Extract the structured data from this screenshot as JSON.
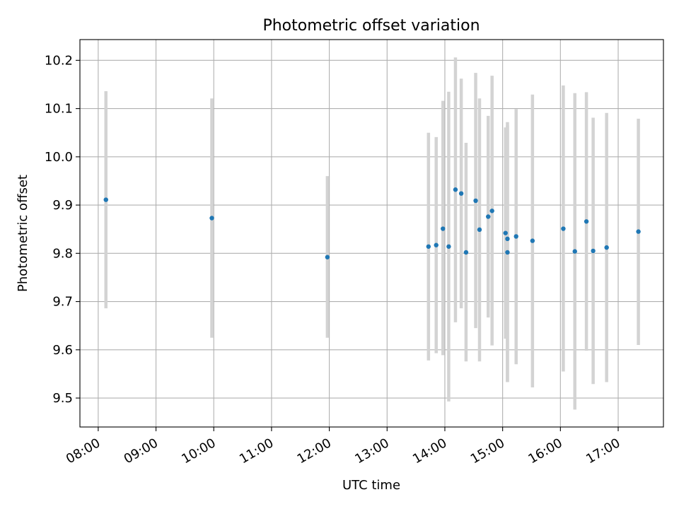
{
  "chart_data": {
    "type": "scatter",
    "title": "Photometric offset variation",
    "xlabel": "UTC time",
    "ylabel": "Photometric offset",
    "x_ticks": [
      "08:00",
      "09:00",
      "10:00",
      "11:00",
      "12:00",
      "13:00",
      "14:00",
      "15:00",
      "16:00",
      "17:00"
    ],
    "y_ticks": [
      "9.5",
      "9.6",
      "9.7",
      "9.8",
      "9.9",
      "10.0",
      "10.1",
      "10.2"
    ],
    "xlim": [
      "07:41",
      "17:47"
    ],
    "ylim": [
      9.44,
      10.243
    ],
    "grid": true,
    "marker_color": "#1f77b4",
    "errorbar_color": "#d3d3d3",
    "points": [
      {
        "t": "08:08",
        "y": 9.911,
        "lo": 9.686,
        "hi": 10.136
      },
      {
        "t": "09:58",
        "y": 9.873,
        "lo": 9.625,
        "hi": 10.121
      },
      {
        "t": "11:58",
        "y": 9.792,
        "lo": 9.625,
        "hi": 9.96
      },
      {
        "t": "13:43",
        "y": 9.814,
        "lo": 9.578,
        "hi": 10.05
      },
      {
        "t": "13:51",
        "y": 9.817,
        "lo": 9.593,
        "hi": 10.041
      },
      {
        "t": "13:58",
        "y": 9.851,
        "lo": 9.589,
        "hi": 10.116
      },
      {
        "t": "14:04",
        "y": 9.814,
        "lo": 9.493,
        "hi": 10.135
      },
      {
        "t": "14:11",
        "y": 9.932,
        "lo": 9.657,
        "hi": 10.206
      },
      {
        "t": "14:17",
        "y": 9.924,
        "lo": 9.686,
        "hi": 10.162
      },
      {
        "t": "14:22",
        "y": 9.802,
        "lo": 9.576,
        "hi": 10.029
      },
      {
        "t": "14:32",
        "y": 9.909,
        "lo": 9.645,
        "hi": 10.174
      },
      {
        "t": "14:36",
        "y": 9.849,
        "lo": 9.576,
        "hi": 10.121
      },
      {
        "t": "14:45",
        "y": 9.876,
        "lo": 9.667,
        "hi": 10.085
      },
      {
        "t": "14:49",
        "y": 9.888,
        "lo": 9.609,
        "hi": 10.168
      },
      {
        "t": "15:03",
        "y": 9.842,
        "lo": 9.623,
        "hi": 10.061
      },
      {
        "t": "15:05",
        "y": 9.83,
        "lo": 9.533,
        "hi": 10.072
      },
      {
        "t": "15:05",
        "y": 9.802,
        "lo": 9.533,
        "hi": 10.065
      },
      {
        "t": "15:14",
        "y": 9.835,
        "lo": 9.57,
        "hi": 10.099
      },
      {
        "t": "15:31",
        "y": 9.826,
        "lo": 9.522,
        "hi": 10.129
      },
      {
        "t": "16:03",
        "y": 9.851,
        "lo": 9.555,
        "hi": 10.148
      },
      {
        "t": "16:15",
        "y": 9.804,
        "lo": 9.476,
        "hi": 10.132
      },
      {
        "t": "16:27",
        "y": 9.866,
        "lo": 9.598,
        "hi": 10.134
      },
      {
        "t": "16:34",
        "y": 9.805,
        "lo": 9.529,
        "hi": 10.081
      },
      {
        "t": "16:48",
        "y": 9.812,
        "lo": 9.533,
        "hi": 10.091
      },
      {
        "t": "17:21",
        "y": 9.845,
        "lo": 9.61,
        "hi": 10.079
      }
    ]
  }
}
